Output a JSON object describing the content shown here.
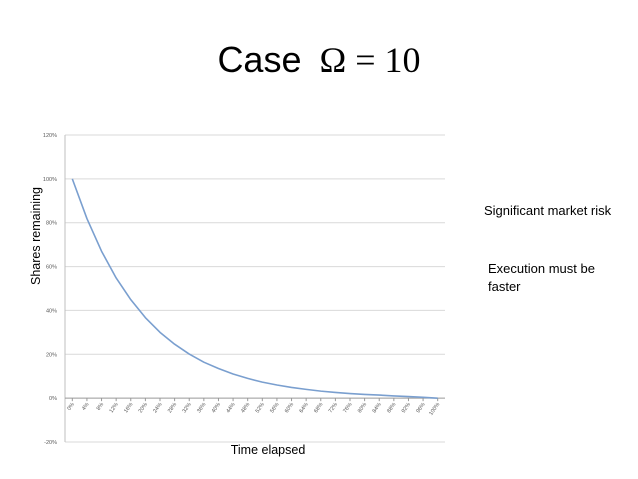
{
  "slide": {
    "title_word": "Case",
    "title_math": "Ω = 10",
    "notes": [
      "Significant market risk",
      "Execution must be faster"
    ]
  },
  "chart_data": {
    "type": "line",
    "xlabel": "Time elapsed",
    "ylabel": "Shares remaining",
    "x_tick_labels": [
      "0%",
      "4%",
      "8%",
      "12%",
      "16%",
      "20%",
      "24%",
      "28%",
      "32%",
      "36%",
      "40%",
      "44%",
      "48%",
      "52%",
      "56%",
      "60%",
      "64%",
      "68%",
      "72%",
      "76%",
      "80%",
      "84%",
      "88%",
      "92%",
      "96%",
      "100%"
    ],
    "y_tick_labels": [
      "120%",
      "100%",
      "80%",
      "60%",
      "40%",
      "20%",
      "0%",
      "-20%"
    ],
    "ylim": [
      -20,
      120
    ],
    "grid": true,
    "line_color": "#7a9fcf",
    "series": [
      {
        "x": [
          0,
          4,
          8,
          12,
          16,
          20,
          24,
          28,
          32,
          36,
          40,
          44,
          48,
          52,
          56,
          60,
          64,
          68,
          72,
          76,
          80,
          84,
          88,
          92,
          96,
          100
        ],
        "values": [
          100,
          81.9,
          67.0,
          54.8,
          44.9,
          36.7,
          30.0,
          24.6,
          20.1,
          16.4,
          13.5,
          11.0,
          9.0,
          7.3,
          6.0,
          4.9,
          4.0,
          3.2,
          2.6,
          2.1,
          1.7,
          1.4,
          1.0,
          0.7,
          0.4,
          0
        ]
      }
    ]
  }
}
